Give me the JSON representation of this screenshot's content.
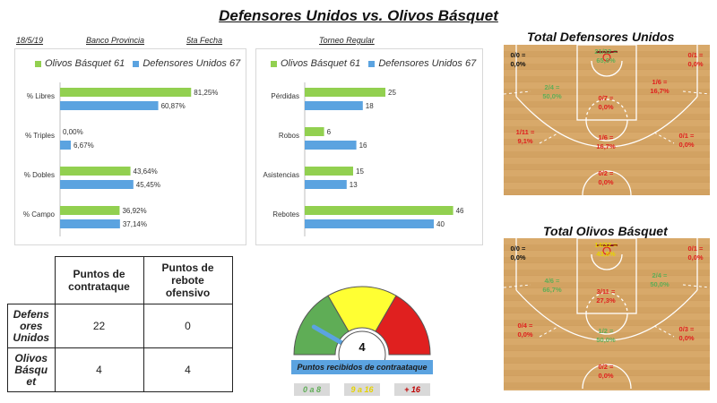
{
  "title": "Defensores Unidos vs. Olivos Básquet",
  "meta": {
    "date": "18/5/19",
    "venue": "Banco Provincia",
    "round": "5ta Fecha",
    "tournament": "Torneo Regular"
  },
  "colors": {
    "olivos": "#92d050",
    "defensores": "#5ba3e0"
  },
  "chart_data": [
    {
      "type": "bar",
      "orientation": "horizontal",
      "categories": [
        "% Libres",
        "% Triples",
        "% Dobles",
        "% Campo"
      ],
      "series": [
        {
          "name": "Olivos Básquet 61",
          "values": [
            81.25,
            0.0,
            43.64,
            36.92
          ],
          "labels": [
            "81,25%",
            "0,00%",
            "43,64%",
            "36,92%"
          ]
        },
        {
          "name": "Defensores Unidos 67",
          "values": [
            60.87,
            6.67,
            45.45,
            37.14
          ],
          "labels": [
            "60,87%",
            "6,67%",
            "45,45%",
            "37,14%"
          ]
        }
      ],
      "xlim": [
        0,
        100
      ],
      "legend": "top"
    },
    {
      "type": "bar",
      "orientation": "horizontal",
      "categories": [
        "Pérdidas",
        "Robos",
        "Asistencias",
        "Rebotes"
      ],
      "series": [
        {
          "name": "Olivos Básquet 61",
          "values": [
            25,
            6,
            15,
            46
          ],
          "labels": [
            "25",
            "6",
            "15",
            "46"
          ]
        },
        {
          "name": "Defensores Unidos 67",
          "values": [
            18,
            16,
            13,
            40
          ],
          "labels": [
            "18",
            "16",
            "13",
            "40"
          ]
        }
      ],
      "xlim": [
        0,
        50
      ],
      "legend": "top"
    }
  ],
  "table": {
    "headers": [
      "Puntos de contrataque",
      "Puntos de rebote ofensivo"
    ],
    "rows": [
      {
        "team": "Defens ores Unidos",
        "values": [
          "22",
          "0"
        ]
      },
      {
        "team": "Olivos Básqu et",
        "values": [
          "4",
          "4"
        ]
      }
    ]
  },
  "gauge": {
    "value": 4,
    "value_label": "4",
    "label": "Puntos recibidos de contraataque",
    "ranges": [
      {
        "label": "0 a 8",
        "color": "#5fad56",
        "text_color": "#5fad56"
      },
      {
        "label": "9 a 16",
        "color": "#ffff33",
        "text_color": "#e6d200"
      },
      {
        "label": "+ 16",
        "color": "#e0201f",
        "text_color": "#c00000"
      }
    ],
    "max": 24
  },
  "courts": [
    {
      "title": "Total Defensores Unidos",
      "zones": [
        {
          "frac": "0/0 =",
          "pct": "0,0%",
          "color": "#111111"
        },
        {
          "frac": "21/32 =",
          "pct": "65,6%",
          "color": "#5fad56"
        },
        {
          "frac": "0/1 =",
          "pct": "0,0%",
          "color": "#e0201f"
        },
        {
          "frac": "2/4 =",
          "pct": "50,0%",
          "color": "#5fad56"
        },
        {
          "frac": "1/6 =",
          "pct": "16,7%",
          "color": "#e0201f"
        },
        {
          "frac": "0/7 =",
          "pct": "0,0%",
          "color": "#e0201f"
        },
        {
          "frac": "1/11 =",
          "pct": "9,1%",
          "color": "#e0201f"
        },
        {
          "frac": "1/6 =",
          "pct": "16,7%",
          "color": "#e0201f"
        },
        {
          "frac": "0/1 =",
          "pct": "0,0%",
          "color": "#e0201f"
        },
        {
          "frac": "0/2 =",
          "pct": "0,0%",
          "color": "#e0201f"
        }
      ]
    },
    {
      "title": "Total Olivos Básquet",
      "zones": [
        {
          "frac": "0/0 =",
          "pct": "0,0%",
          "color": "#111111"
        },
        {
          "frac": "14/32 =",
          "pct": "43,8%",
          "color": "#e6d200"
        },
        {
          "frac": "0/1 =",
          "pct": "0,0%",
          "color": "#e0201f"
        },
        {
          "frac": "4/6 =",
          "pct": "66,7%",
          "color": "#5fad56"
        },
        {
          "frac": "2/4 =",
          "pct": "50,0%",
          "color": "#5fad56"
        },
        {
          "frac": "3/11 =",
          "pct": "27,3%",
          "color": "#e0201f"
        },
        {
          "frac": "0/4 =",
          "pct": "0,0%",
          "color": "#e0201f"
        },
        {
          "frac": "1/2 =",
          "pct": "50,0%",
          "color": "#5fad56"
        },
        {
          "frac": "0/3 =",
          "pct": "0,0%",
          "color": "#e0201f"
        },
        {
          "frac": "0/2 =",
          "pct": "0,0%",
          "color": "#e0201f"
        }
      ]
    }
  ]
}
